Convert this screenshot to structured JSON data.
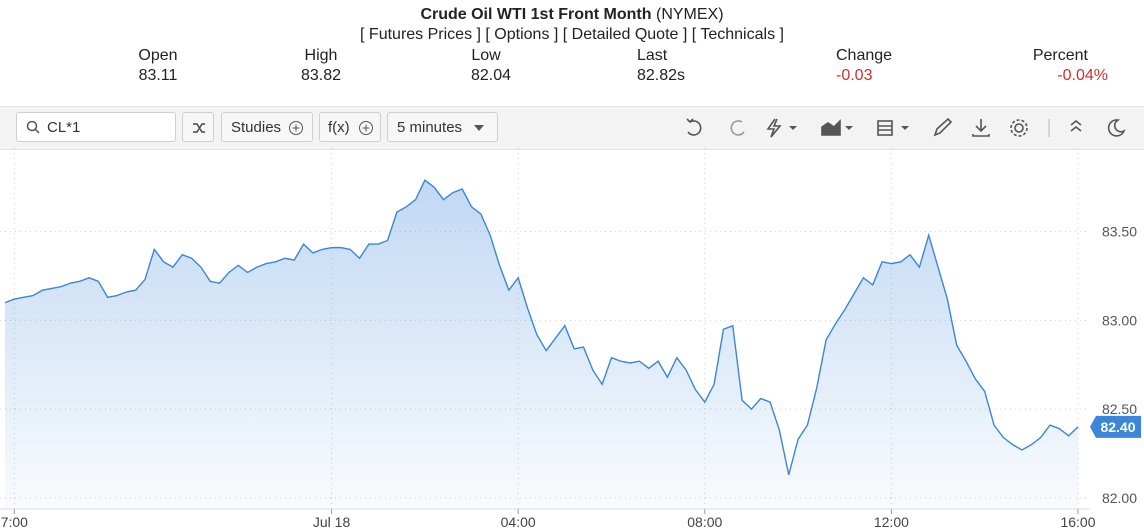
{
  "header": {
    "title": "Crude Oil WTI 1st Front Month",
    "exchange": "(NYMEX)",
    "links": [
      "Futures Prices",
      "Options",
      "Detailed Quote",
      "Technicals"
    ]
  },
  "quote": {
    "labels": [
      "Open",
      "High",
      "Low",
      "Last",
      "Change",
      "Percent"
    ],
    "values": [
      "83.11",
      "83.82",
      "82.04",
      "82.82s",
      "-0.03",
      "-0.04%"
    ]
  },
  "toolbar": {
    "symbol": "CL*1",
    "buttons": [
      "Studies",
      "f(x)",
      "5 minutes"
    ]
  },
  "chart_data": {
    "type": "area",
    "color": "#3b86d8",
    "grid": true,
    "categories": [
      null,
      "7:00",
      null,
      null,
      null,
      null,
      null,
      null,
      null,
      null,
      null,
      null,
      null,
      null,
      null,
      null,
      null,
      null,
      null,
      null,
      null,
      null,
      null,
      null,
      null,
      null,
      null,
      null,
      null,
      null,
      null,
      null,
      null,
      null,
      null,
      "Jul 18",
      null,
      null,
      null,
      null,
      null,
      null,
      null,
      null,
      null,
      null,
      null,
      null,
      null,
      null,
      null,
      null,
      null,
      null,
      null,
      "04:00",
      null,
      null,
      null,
      null,
      null,
      null,
      null,
      null,
      null,
      null,
      null,
      null,
      null,
      null,
      null,
      null,
      null,
      null,
      null,
      "08:00",
      null,
      null,
      null,
      null,
      null,
      null,
      null,
      null,
      null,
      null,
      null,
      null,
      null,
      null,
      null,
      null,
      null,
      null,
      null,
      "12:00",
      null,
      null,
      null,
      null,
      null,
      null,
      null,
      null,
      null,
      null,
      null,
      null,
      null,
      null,
      null,
      null,
      null,
      null,
      null,
      "16:00"
    ],
    "values": [
      83.1,
      83.12,
      83.13,
      83.14,
      83.17,
      83.18,
      83.19,
      83.21,
      83.22,
      83.24,
      83.22,
      83.13,
      83.14,
      83.16,
      83.17,
      83.23,
      83.4,
      83.33,
      83.3,
      83.37,
      83.35,
      83.3,
      83.22,
      83.21,
      83.27,
      83.31,
      83.27,
      83.3,
      83.32,
      83.33,
      83.35,
      83.34,
      83.43,
      83.38,
      83.4,
      83.41,
      83.41,
      83.4,
      83.35,
      83.43,
      83.43,
      83.45,
      83.61,
      83.64,
      83.68,
      83.79,
      83.75,
      83.68,
      83.72,
      83.74,
      83.64,
      83.6,
      83.48,
      83.31,
      83.17,
      83.24,
      83.07,
      82.92,
      82.83,
      82.9,
      82.97,
      82.84,
      82.85,
      82.72,
      82.64,
      82.79,
      82.77,
      82.76,
      82.77,
      82.73,
      82.77,
      82.68,
      82.79,
      82.72,
      82.61,
      82.54,
      82.64,
      82.95,
      82.97,
      82.55,
      82.5,
      82.56,
      82.54,
      82.38,
      82.13,
      82.33,
      82.41,
      82.62,
      82.89,
      82.98,
      83.06,
      83.15,
      83.24,
      83.2,
      83.33,
      83.32,
      83.33,
      83.37,
      83.3,
      83.48,
      83.3,
      83.12,
      82.86,
      82.77,
      82.67,
      82.6,
      82.41,
      82.34,
      82.3,
      82.27,
      82.3,
      82.34,
      82.41,
      82.39,
      82.35,
      82.4
    ],
    "ylim": [
      81.96,
      83.96
    ],
    "yticks": [
      {
        "value": 82,
        "label": "82.00"
      },
      {
        "value": 82.5,
        "label": "82.50"
      },
      {
        "value": 83,
        "label": "83.00"
      },
      {
        "value": 83.5,
        "label": "83.50"
      }
    ],
    "last_price": {
      "value": 82.4,
      "label": "82.40"
    }
  }
}
